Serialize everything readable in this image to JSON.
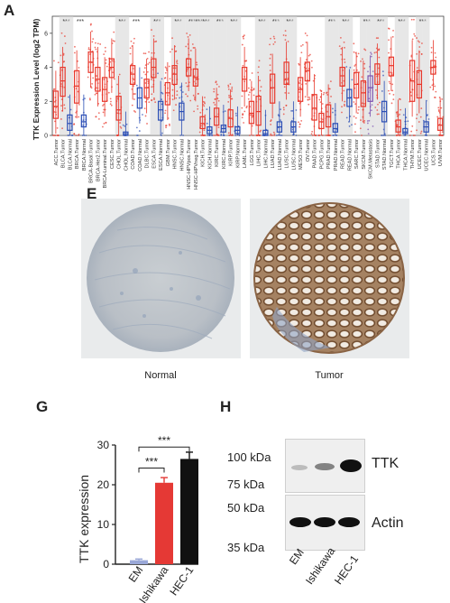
{
  "panels": {
    "a": "A",
    "e": "E",
    "g": "G",
    "h": "H"
  },
  "panel_a": {
    "ylabel": "TTK Expression Level (log2 TPM)",
    "yticks": [
      "0",
      "2",
      "4",
      "6"
    ],
    "sig_label": "***",
    "groups": [
      {
        "label": "ACC.Tumor",
        "type": "tumor",
        "median": 1.7,
        "q1": 1.0,
        "q3": 2.6,
        "shade": false
      },
      {
        "label": "BLCA.Tumor",
        "type": "tumor",
        "median": 3.2,
        "q1": 2.3,
        "q3": 4.0,
        "shade": true,
        "sig": true
      },
      {
        "label": "BLCA.Normal",
        "type": "normal",
        "median": 0.7,
        "q1": 0.3,
        "q3": 1.2,
        "shade": true
      },
      {
        "label": "BRCA.Tumor",
        "type": "tumor",
        "median": 2.9,
        "q1": 1.9,
        "q3": 3.8,
        "shade": false,
        "sig": true
      },
      {
        "label": "BRCA.Normal",
        "type": "normal",
        "median": 0.8,
        "q1": 0.5,
        "q3": 1.2,
        "shade": false
      },
      {
        "label": "BRCA-Basal.Tumor",
        "type": "tumor",
        "median": 4.3,
        "q1": 3.7,
        "q3": 4.9,
        "shade": false
      },
      {
        "label": "BRCA-Her2.Tumor",
        "type": "tumor",
        "median": 3.3,
        "q1": 2.6,
        "q3": 4.0,
        "shade": false
      },
      {
        "label": "BRCA-Luminal.Tumor",
        "type": "tumor",
        "median": 2.7,
        "q1": 2.0,
        "q3": 3.4,
        "shade": false
      },
      {
        "label": "CESC.Tumor",
        "type": "tumor",
        "median": 4.0,
        "q1": 3.4,
        "q3": 4.5,
        "shade": false
      },
      {
        "label": "CHOL.Tumor",
        "type": "tumor",
        "median": 1.5,
        "q1": 0.9,
        "q3": 2.3,
        "shade": true,
        "sig": true
      },
      {
        "label": "CHOL.Normal",
        "type": "normal",
        "median": 0.1,
        "q1": 0.0,
        "q3": 0.2,
        "shade": true
      },
      {
        "label": "COAD.Tumor",
        "type": "tumor",
        "median": 3.6,
        "q1": 3.0,
        "q3": 4.1,
        "shade": false,
        "sig": true
      },
      {
        "label": "COAD.Normal",
        "type": "normal",
        "median": 2.2,
        "q1": 1.6,
        "q3": 2.8,
        "shade": false
      },
      {
        "label": "DLBC.Tumor",
        "type": "tumor",
        "median": 2.8,
        "q1": 2.2,
        "q3": 3.3,
        "shade": false
      },
      {
        "label": "ESCA.Tumor",
        "type": "tumor",
        "median": 4.0,
        "q1": 3.4,
        "q3": 4.5,
        "shade": true,
        "sig": true
      },
      {
        "label": "ESCA.Normal",
        "type": "normal",
        "median": 1.5,
        "q1": 0.9,
        "q3": 2.0,
        "shade": true
      },
      {
        "label": "GBM.Tumor",
        "type": "tumor",
        "median": 2.5,
        "q1": 1.8,
        "q3": 3.1,
        "shade": false
      },
      {
        "label": "HNSC.Tumor",
        "type": "tumor",
        "median": 3.6,
        "q1": 3.0,
        "q3": 4.1,
        "shade": true,
        "sig": true
      },
      {
        "label": "HNSC.Normal",
        "type": "normal",
        "median": 1.4,
        "q1": 0.9,
        "q3": 1.9,
        "shade": true
      },
      {
        "label": "HNSC-HPVpos.Tumor",
        "type": "tumor",
        "median": 4.0,
        "q1": 3.5,
        "q3": 4.5,
        "shade": true,
        "sig": true
      },
      {
        "label": "HNSC-HPVneg.Tumor",
        "type": "tumor",
        "median": 3.4,
        "q1": 2.9,
        "q3": 3.9,
        "shade": true,
        "sig": true
      },
      {
        "label": "KICH.Tumor",
        "type": "tumor",
        "median": 0.7,
        "q1": 0.4,
        "q3": 1.1,
        "shade": true,
        "sig": true
      },
      {
        "label": "KICH.Normal",
        "type": "normal",
        "median": 0.3,
        "q1": 0.1,
        "q3": 0.5,
        "shade": true
      },
      {
        "label": "KIRC.Tumor",
        "type": "tumor",
        "median": 1.1,
        "q1": 0.6,
        "q3": 1.6,
        "shade": true,
        "sig": true
      },
      {
        "label": "KIRC.Normal",
        "type": "normal",
        "median": 0.4,
        "q1": 0.2,
        "q3": 0.6,
        "shade": true
      },
      {
        "label": "KIRP.Tumor",
        "type": "tumor",
        "median": 1.0,
        "q1": 0.5,
        "q3": 1.5,
        "shade": true,
        "sig": true
      },
      {
        "label": "KIRP.Normal",
        "type": "normal",
        "median": 0.3,
        "q1": 0.1,
        "q3": 0.5,
        "shade": true
      },
      {
        "label": "LAML.Tumor",
        "type": "tumor",
        "median": 3.3,
        "q1": 2.6,
        "q3": 4.0,
        "shade": false
      },
      {
        "label": "LGG.Tumor",
        "type": "tumor",
        "median": 1.3,
        "q1": 0.7,
        "q3": 2.0,
        "shade": false
      },
      {
        "label": "LIHC.Tumor",
        "type": "tumor",
        "median": 1.4,
        "q1": 0.6,
        "q3": 2.3,
        "shade": true,
        "sig": true
      },
      {
        "label": "LIHC.Normal",
        "type": "normal",
        "median": 0.1,
        "q1": 0.0,
        "q3": 0.3,
        "shade": true
      },
      {
        "label": "LUAD.Tumor",
        "type": "tumor",
        "median": 2.8,
        "q1": 1.9,
        "q3": 3.6,
        "shade": true,
        "sig": true
      },
      {
        "label": "LUAD.Normal",
        "type": "normal",
        "median": 0.5,
        "q1": 0.2,
        "q3": 0.8,
        "shade": true
      },
      {
        "label": "LUSC.Tumor",
        "type": "tumor",
        "median": 3.7,
        "q1": 3.0,
        "q3": 4.3,
        "shade": true,
        "sig": true
      },
      {
        "label": "LUSC.Normal",
        "type": "normal",
        "median": 0.5,
        "q1": 0.2,
        "q3": 0.8,
        "shade": true
      },
      {
        "label": "MESO.Tumor",
        "type": "tumor",
        "median": 2.7,
        "q1": 2.0,
        "q3": 3.4,
        "shade": false
      },
      {
        "label": "OV.Tumor",
        "type": "tumor",
        "median": 3.8,
        "q1": 3.2,
        "q3": 4.3,
        "shade": false
      },
      {
        "label": "PAAD.Tumor",
        "type": "tumor",
        "median": 1.6,
        "q1": 0.9,
        "q3": 2.4,
        "shade": false
      },
      {
        "label": "PCPG.Tumor",
        "type": "tumor",
        "median": 0.8,
        "q1": 0.4,
        "q3": 1.3,
        "shade": false
      },
      {
        "label": "PRAD.Tumor",
        "type": "tumor",
        "median": 1.1,
        "q1": 0.5,
        "q3": 1.8,
        "shade": true,
        "sig": true
      },
      {
        "label": "PRAD.Normal",
        "type": "normal",
        "median": 0.4,
        "q1": 0.2,
        "q3": 0.7,
        "shade": true
      },
      {
        "label": "READ.Tumor",
        "type": "tumor",
        "median": 3.5,
        "q1": 2.9,
        "q3": 4.0,
        "shade": true,
        "sig": true
      },
      {
        "label": "READ.Normal",
        "type": "normal",
        "median": 2.2,
        "q1": 1.7,
        "q3": 2.7,
        "shade": true
      },
      {
        "label": "SARC.Tumor",
        "type": "tumor",
        "median": 3.0,
        "q1": 2.2,
        "q3": 3.7,
        "shade": false
      },
      {
        "label": "SKCM.Tumor",
        "type": "tumor",
        "median": 2.5,
        "q1": 1.7,
        "q3": 3.2,
        "shade": true,
        "sig": true
      },
      {
        "label": "SKCM.Metastasis",
        "type": "metastasis",
        "median": 2.8,
        "q1": 2.0,
        "q3": 3.5,
        "shade": true
      },
      {
        "label": "STAD.Tumor",
        "type": "tumor",
        "median": 3.6,
        "q1": 3.0,
        "q3": 4.2,
        "shade": true,
        "sig": true
      },
      {
        "label": "STAD.Normal",
        "type": "normal",
        "median": 1.4,
        "q1": 0.8,
        "q3": 2.0,
        "shade": true
      },
      {
        "label": "TGCT.Tumor",
        "type": "tumor",
        "median": 4.1,
        "q1": 3.5,
        "q3": 4.6,
        "shade": false
      },
      {
        "label": "THCA.Tumor",
        "type": "tumor",
        "median": 0.5,
        "q1": 0.2,
        "q3": 0.9,
        "shade": true,
        "sig": true
      },
      {
        "label": "THCA.Normal",
        "type": "normal",
        "median": 0.2,
        "q1": 0.1,
        "q3": 0.4,
        "shade": true
      },
      {
        "label": "THYM.Tumor",
        "type": "tumor",
        "median": 3.2,
        "q1": 2.0,
        "q3": 4.4,
        "shade": false
      },
      {
        "label": "UCEC.Tumor",
        "type": "tumor",
        "median": 3.0,
        "q1": 2.2,
        "q3": 3.8,
        "shade": true,
        "sig": true
      },
      {
        "label": "UCEC.Normal",
        "type": "normal",
        "median": 0.5,
        "q1": 0.2,
        "q3": 0.8,
        "shade": true
      },
      {
        "label": "UCS.Tumor",
        "type": "tumor",
        "median": 4.0,
        "q1": 3.6,
        "q3": 4.4,
        "shade": false
      },
      {
        "label": "UVM.Tumor",
        "type": "tumor",
        "median": 0.6,
        "q1": 0.3,
        "q3": 1.0,
        "shade": false
      }
    ]
  },
  "panel_e": {
    "normal_label": "Normal",
    "tumor_label": "Tumor"
  },
  "panel_g": {
    "ylabel": "TTK expression",
    "yticks": [
      "0",
      "10",
      "20",
      "30"
    ],
    "sig1": "***",
    "sig2": "***"
  },
  "panel_h": {
    "mw_labels": [
      "100 kDa",
      "75 kDa",
      "50 kDa",
      "35 kDa"
    ],
    "ttk_label": "TTK",
    "actin_label": "Actin",
    "lanes": [
      "EM",
      "Ishikawa",
      "HEC-1"
    ]
  },
  "chart_data": [
    {
      "type": "bar",
      "categories": [
        "EM",
        "Ishikawa",
        "HEC-1"
      ],
      "values": [
        1,
        20.5,
        26.5
      ],
      "errors": [
        0.3,
        1.3,
        1.7
      ],
      "ylabel": "TTK expression",
      "ylim": [
        0,
        30
      ],
      "colors": [
        "#9aa8d8",
        "#e53935",
        "#111111"
      ]
    }
  ],
  "colors": {
    "tumor": "#e8372b",
    "normal": "#2a4db5",
    "metastasis": "#7a4fb0",
    "shade": "#d3d3d3"
  }
}
